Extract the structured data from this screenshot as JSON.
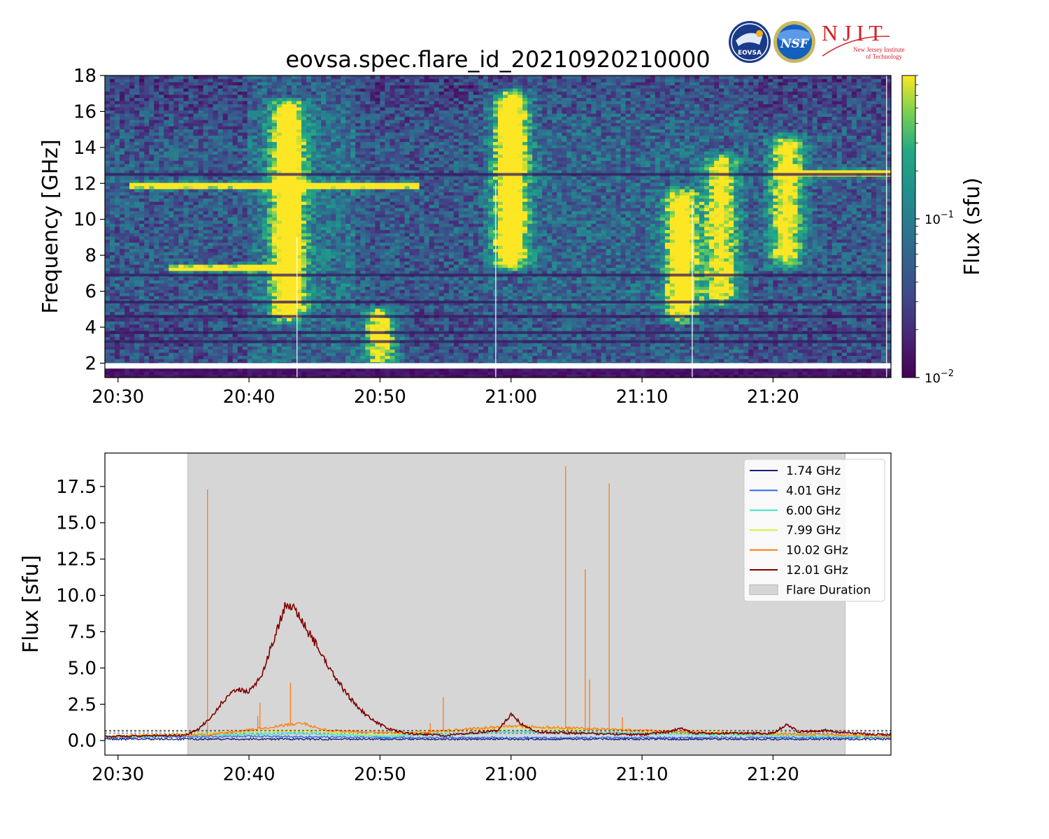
{
  "figure": {
    "title": "eovsa.spec.flare_id_20210920210000"
  },
  "logos": [
    {
      "name": "EOVSA",
      "text": "EOVSA",
      "color": "#1a3a8a"
    },
    {
      "name": "NSF",
      "text": "NSF",
      "color": "#1560bd"
    },
    {
      "name": "NJIT",
      "text": "NJIT",
      "sub1": "New Jersey Institute",
      "sub2": "of Technology",
      "color": "#d42027"
    }
  ],
  "chart_data": [
    {
      "type": "heatmap",
      "ylabel": "Frequency [GHz]",
      "x_ticks": [
        "20:30",
        "20:40",
        "20:50",
        "21:00",
        "21:10",
        "21:20"
      ],
      "x_range": [
        "20:29",
        "21:29"
      ],
      "y_ticks": [
        2,
        4,
        6,
        8,
        10,
        12,
        14,
        16,
        18
      ],
      "ylim": [
        1.2,
        18
      ],
      "colorbar": {
        "label": "Flux  (sfu)",
        "scale": "log",
        "range": [
          0.01,
          0.8
        ],
        "tick_labels": [
          {
            "base": "10",
            "exp": "−1",
            "value": 0.1
          },
          {
            "base": "10",
            "exp": "−2",
            "value": 0.01
          }
        ],
        "colormap": "viridis"
      },
      "features": [
        {
          "kind": "band",
          "t_start": "20:31",
          "t_end": "20:53",
          "freq": 11.9,
          "level": 1.0
        },
        {
          "kind": "band",
          "t_start": "20:34",
          "t_end": "20:43",
          "freq": 7.3,
          "level": 0.95
        },
        {
          "kind": "band",
          "t_start": "21:20",
          "t_end": "21:29",
          "freq": 12.6,
          "level": 1.0
        },
        {
          "kind": "burst",
          "time": "21:00",
          "f_low": 8,
          "f_high": 16.5,
          "level": 1.0
        },
        {
          "kind": "burst",
          "time": "20:43",
          "f_low": 5,
          "f_high": 16,
          "level": 0.9
        },
        {
          "kind": "burst",
          "time": "21:13",
          "f_low": 5,
          "f_high": 11,
          "level": 0.85
        },
        {
          "kind": "burst",
          "time": "21:21",
          "f_low": 8,
          "f_high": 14,
          "level": 0.8
        },
        {
          "kind": "burst",
          "time": "21:16",
          "f_low": 6,
          "f_high": 13,
          "level": 0.7
        },
        {
          "kind": "burst",
          "time": "20:50",
          "f_low": 2.5,
          "f_high": 4.5,
          "level": 0.8
        }
      ]
    },
    {
      "type": "line",
      "ylabel": "Flux [sfu]",
      "x_ticks": [
        "20:30",
        "20:40",
        "20:50",
        "21:00",
        "21:10",
        "21:20"
      ],
      "x_range": [
        "20:29",
        "21:29"
      ],
      "y_ticks": [
        "0.0",
        "2.5",
        "5.0",
        "7.5",
        "10.0",
        "12.5",
        "15.0",
        "17.5"
      ],
      "ylim": [
        -1.0,
        19.8
      ],
      "flare_duration": {
        "start": "20:35:20",
        "end": "21:25:30",
        "label": "Flare Duration"
      },
      "series": [
        {
          "name": "1.74 GHz",
          "color": "#1a1a7a",
          "baseline": 0.1,
          "points": [
            [
              "20:29",
              0.1
            ],
            [
              "21:29",
              0.1
            ]
          ]
        },
        {
          "name": "4.01 GHz",
          "color": "#2a6ae8",
          "baseline": 0.2,
          "points": [
            [
              "20:29",
              0.2
            ],
            [
              "20:40",
              0.3
            ],
            [
              "20:50",
              0.2
            ],
            [
              "21:29",
              0.2
            ]
          ]
        },
        {
          "name": "6.00 GHz",
          "color": "#40e8c8",
          "baseline": 0.25,
          "points": [
            [
              "20:29",
              0.25
            ],
            [
              "20:44",
              0.5
            ],
            [
              "20:50",
              0.3
            ],
            [
              "21:00",
              0.6
            ],
            [
              "21:29",
              0.25
            ]
          ]
        },
        {
          "name": "7.99 GHz",
          "color": "#d4f040",
          "baseline": 0.3,
          "points": [
            [
              "20:29",
              0.3
            ],
            [
              "20:44",
              0.7
            ],
            [
              "20:50",
              0.4
            ],
            [
              "21:00",
              0.9
            ],
            [
              "21:13",
              0.6
            ],
            [
              "21:29",
              0.3
            ]
          ]
        },
        {
          "name": "10.02 GHz",
          "color": "#ff7a10",
          "baseline": 0.3,
          "points": [
            [
              "20:29",
              0.3
            ],
            [
              "20:37",
              0.4
            ],
            [
              "20:44",
              1.2
            ],
            [
              "20:46",
              0.7
            ],
            [
              "20:52",
              0.5
            ],
            [
              "21:00",
              1.0
            ],
            [
              "21:13",
              0.6
            ],
            [
              "21:29",
              0.3
            ]
          ],
          "spikes": [
            [
              "20:36:50",
              17.3
            ],
            [
              "20:40:50",
              2.6
            ],
            [
              "20:40:40",
              1.7
            ],
            [
              "20:43:10",
              4.0
            ],
            [
              "20:54:50",
              3.0
            ],
            [
              "20:53:50",
              1.2
            ],
            [
              "21:04:10",
              18.9
            ],
            [
              "21:05:40",
              11.8
            ],
            [
              "21:06:00",
              4.2
            ],
            [
              "21:07:30",
              17.7
            ],
            [
              "21:08:30",
              1.6
            ]
          ]
        },
        {
          "name": "12.01 GHz",
          "color": "#800000",
          "baseline": 0.3,
          "points": [
            [
              "20:29",
              0.3
            ],
            [
              "20:35",
              0.35
            ],
            [
              "20:36",
              0.7
            ],
            [
              "20:37",
              1.5
            ],
            [
              "20:38",
              2.7
            ],
            [
              "20:39",
              3.5
            ],
            [
              "20:40",
              3.4
            ],
            [
              "20:41",
              4.5
            ],
            [
              "20:42",
              7.3
            ],
            [
              "20:42:45",
              9.2
            ],
            [
              "20:43:30",
              9.0
            ],
            [
              "20:44",
              8.2
            ],
            [
              "20:45",
              6.8
            ],
            [
              "20:46",
              5.2
            ],
            [
              "20:47",
              3.8
            ],
            [
              "20:48",
              2.6
            ],
            [
              "20:49",
              1.7
            ],
            [
              "20:50",
              1.1
            ],
            [
              "20:51",
              0.7
            ],
            [
              "20:52",
              0.5
            ],
            [
              "20:55",
              0.35
            ],
            [
              "20:59",
              0.7
            ],
            [
              "21:00",
              1.8
            ],
            [
              "21:01",
              1.0
            ],
            [
              "21:02",
              0.6
            ],
            [
              "21:05",
              0.5
            ],
            [
              "21:10",
              0.4
            ],
            [
              "21:12",
              0.6
            ],
            [
              "21:13",
              0.85
            ],
            [
              "21:14",
              0.5
            ],
            [
              "21:17",
              0.5
            ],
            [
              "21:20",
              0.5
            ],
            [
              "21:21",
              1.1
            ],
            [
              "21:22",
              0.6
            ],
            [
              "21:24",
              0.7
            ],
            [
              "21:26",
              0.5
            ],
            [
              "21:29",
              0.4
            ]
          ]
        }
      ],
      "legend_position": "upper right"
    }
  ]
}
